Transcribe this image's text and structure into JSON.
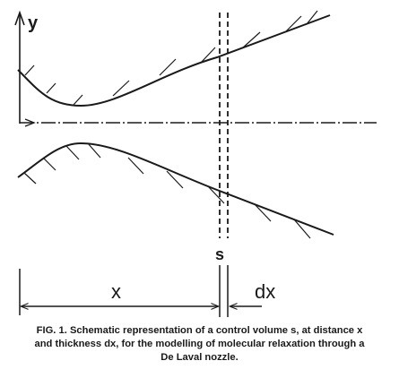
{
  "figure": {
    "y_axis_label": "y",
    "section_label": "s",
    "distance_label": "x",
    "thickness_label": "dx"
  },
  "caption": {
    "line1": "FIG. 1. Schematic representation of a control volume s, at distance x",
    "line2": "and thickness dx, for the modelling of molecular relaxation through a",
    "line3": "De Laval nozzle."
  }
}
